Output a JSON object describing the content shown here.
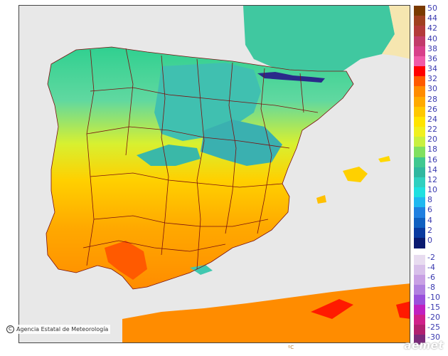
{
  "map": {
    "credit": "Agencia Estatal de Meteorología",
    "logo": "aemet",
    "bottom_mark": "ºC",
    "colors": {
      "sea": "#e8e8e8",
      "border": "#7a1010",
      "mountain": "#2a2a8a"
    }
  },
  "legend": {
    "unit": "ºC",
    "items": [
      {
        "label": "50",
        "color": "#7a3a00"
      },
      {
        "label": "44",
        "color": "#a04020"
      },
      {
        "label": "42",
        "color": "#b33a3a"
      },
      {
        "label": "40",
        "color": "#c23b6a"
      },
      {
        "label": "38",
        "color": "#d8408a"
      },
      {
        "label": "36",
        "color": "#f05aa8"
      },
      {
        "label": "34",
        "color": "#ff0000"
      },
      {
        "label": "32",
        "color": "#ff5a00"
      },
      {
        "label": "30",
        "color": "#ff8c00"
      },
      {
        "label": "28",
        "color": "#ffaa00"
      },
      {
        "label": "26",
        "color": "#ffc800"
      },
      {
        "label": "24",
        "color": "#ffe400"
      },
      {
        "label": "22",
        "color": "#f0f020"
      },
      {
        "label": "20",
        "color": "#c8f040"
      },
      {
        "label": "18",
        "color": "#80e060"
      },
      {
        "label": "16",
        "color": "#40c890"
      },
      {
        "label": "14",
        "color": "#30b8a0"
      },
      {
        "label": "12",
        "color": "#30d0c0"
      },
      {
        "label": "10",
        "color": "#20e0e0"
      },
      {
        "label": "8",
        "color": "#20b8f0"
      },
      {
        "label": "6",
        "color": "#2080e0"
      },
      {
        "label": "4",
        "color": "#1060c0"
      },
      {
        "label": "2",
        "color": "#0a3aa0"
      },
      {
        "label": "0",
        "color": "#0a1a70"
      },
      {
        "label": "-2",
        "color": "#e8dcf0"
      },
      {
        "label": "-4",
        "color": "#d8c0ea"
      },
      {
        "label": "-6",
        "color": "#c8a0e4"
      },
      {
        "label": "-8",
        "color": "#b080e0"
      },
      {
        "label": "-10",
        "color": "#9a50dc"
      },
      {
        "label": "-15",
        "color": "#c020c0"
      },
      {
        "label": "-20",
        "color": "#d0208a"
      },
      {
        "label": "-25",
        "color": "#b02070"
      },
      {
        "label": "-30",
        "color": "#7a2a7a"
      }
    ]
  }
}
